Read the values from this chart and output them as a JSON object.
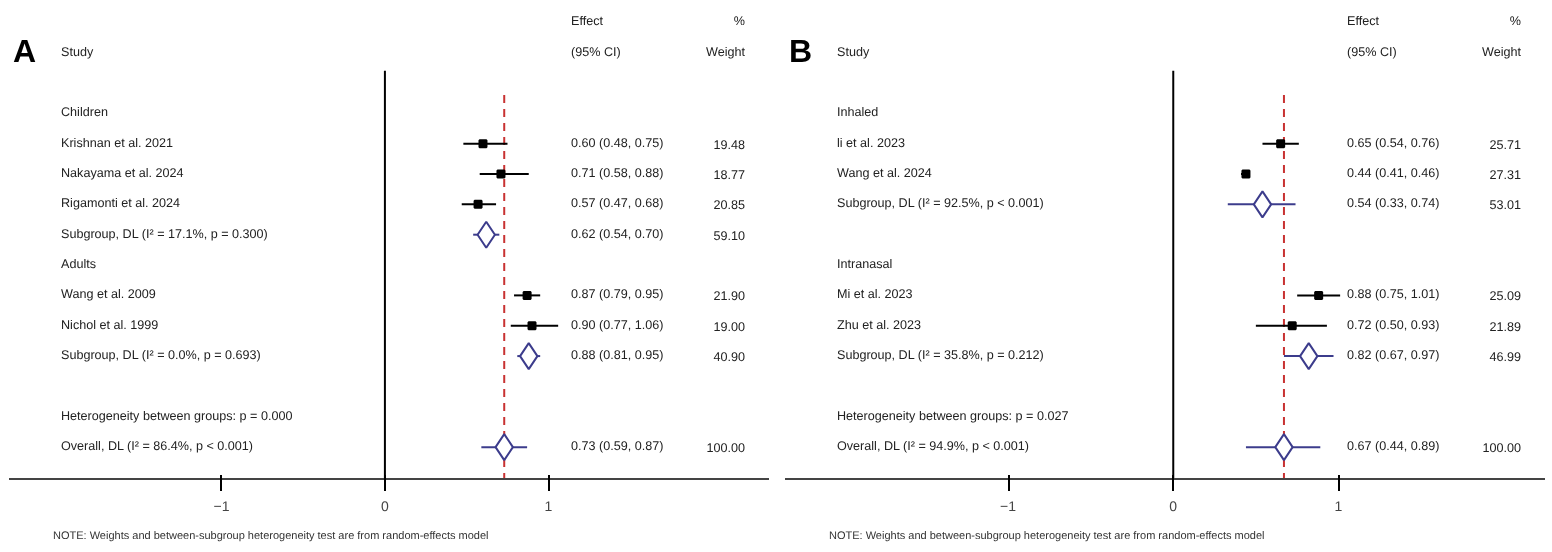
{
  "chart_data": [
    {
      "type": "scatter",
      "title": "A",
      "ylabel": "Study",
      "orientation": "horizontal",
      "tick_labels": "x",
      "grid": false,
      "categories": [
        "Children",
        "Krishnan et al. 2021",
        "Nakayama et al. 2024",
        "Rigamonti et al. 2024",
        "Subgroup, DL (I² = 17.1%, p = 0.300)",
        "Adults",
        "Wang et al. 2009",
        "Nichol et al. 1999",
        "Subgroup, DL (I² = 0.0%, p = 0.693)",
        null,
        "Heterogeneity between groups: p = 0.000",
        "Overall, DL (I² = 86.4%, p < 0.001)"
      ],
      "series": [
        {
          "marker": "square",
          "color": "#000000",
          "values": [
            null,
            0.6,
            0.71,
            0.57,
            null,
            null,
            0.87,
            0.9,
            null,
            null,
            null,
            null
          ],
          "errors": [
            null,
            [
              0.48,
              0.75
            ],
            [
              0.58,
              0.88
            ],
            [
              0.47,
              0.68
            ],
            null,
            null,
            [
              0.79,
              0.95
            ],
            [
              0.77,
              1.06
            ],
            null,
            null,
            null,
            null
          ]
        },
        {
          "marker": "diamond",
          "color": "#3c3c8c",
          "values": [
            null,
            null,
            null,
            null,
            0.62,
            null,
            null,
            null,
            0.88,
            null,
            null,
            0.73
          ],
          "errors": [
            null,
            null,
            null,
            null,
            [
              0.54,
              0.7
            ],
            null,
            null,
            null,
            [
              0.81,
              0.95
            ],
            null,
            null,
            [
              0.59,
              0.87
            ]
          ]
        }
      ],
      "xlim": [
        -2.3,
        2.35
      ],
      "xticks": [
        {
          "value": -1,
          "label": "−1"
        },
        0,
        1
      ],
      "ref_lines": [
        {
          "axis": "x",
          "value": 0,
          "color": "#000000",
          "line_style": "solid"
        },
        {
          "axis": "x",
          "value": 0.73,
          "color": "#c83232",
          "line_style": "dashed"
        }
      ],
      "annotations": [
        "Effect",
        "(95% CI)",
        "%",
        "Weight",
        "NOTE: Weights and between-subgroup heterogeneity test are from random-effects model",
        "0.60 (0.48, 0.75)",
        "0.71 (0.58, 0.88)",
        "0.57 (0.47, 0.68)",
        "0.62 (0.54, 0.70)",
        "0.87 (0.79, 0.95)",
        "0.90 (0.77, 1.06)",
        "0.88 (0.81, 0.95)",
        "0.73 (0.59, 0.87)",
        "19.48",
        "18.77",
        "20.85",
        "59.10",
        "21.90",
        "19.00",
        "40.90",
        "100.00"
      ]
    },
    {
      "type": "scatter",
      "title": "B",
      "ylabel": "Study",
      "orientation": "horizontal",
      "tick_labels": "x",
      "grid": false,
      "categories": [
        "Inhaled",
        "li et al. 2023",
        "Wang et al. 2024",
        "Subgroup, DL (I² = 92.5%, p < 0.001)",
        null,
        "Intranasal",
        "Mi et al. 2023",
        "Zhu et al. 2023",
        "Subgroup, DL (I² = 35.8%, p = 0.212)",
        null,
        "Heterogeneity between groups: p = 0.027",
        "Overall, DL (I² = 94.9%, p < 0.001)"
      ],
      "series": [
        {
          "marker": "square",
          "color": "#000000",
          "values": [
            null,
            0.65,
            0.44,
            null,
            null,
            null,
            0.88,
            0.72,
            null,
            null,
            null,
            null
          ],
          "errors": [
            null,
            [
              0.54,
              0.76
            ],
            [
              0.41,
              0.46
            ],
            null,
            null,
            null,
            [
              0.75,
              1.01
            ],
            [
              0.5,
              0.93
            ],
            null,
            null,
            null,
            null
          ]
        },
        {
          "marker": "diamond",
          "color": "#3c3c8c",
          "values": [
            null,
            null,
            null,
            0.54,
            null,
            null,
            null,
            null,
            0.82,
            null,
            null,
            0.67
          ],
          "errors": [
            null,
            null,
            null,
            [
              0.33,
              0.74
            ],
            null,
            null,
            null,
            null,
            [
              0.67,
              0.97
            ],
            null,
            null,
            [
              0.44,
              0.89
            ]
          ]
        }
      ],
      "xlim": [
        -2.35,
        2.25
      ],
      "xticks": [
        {
          "value": -1,
          "label": "−1"
        },
        0,
        1
      ],
      "ref_lines": [
        {
          "axis": "x",
          "value": 0,
          "color": "#000000",
          "line_style": "solid"
        },
        {
          "axis": "x",
          "value": 0.67,
          "color": "#c83232",
          "line_style": "dashed"
        }
      ],
      "annotations": [
        "Effect",
        "(95% CI)",
        "%",
        "Weight",
        "NOTE: Weights and between-subgroup heterogeneity test are from random-effects model",
        "0.65 (0.54, 0.76)",
        "0.44 (0.41, 0.46)",
        "0.54 (0.33, 0.74)",
        "0.88 (0.75, 1.01)",
        "0.72 (0.50, 0.93)",
        "0.82 (0.67, 0.97)",
        "0.67 (0.44, 0.89)",
        "25.71",
        "27.31",
        "53.01",
        "25.09",
        "21.89",
        "46.99",
        "100.00"
      ]
    }
  ]
}
